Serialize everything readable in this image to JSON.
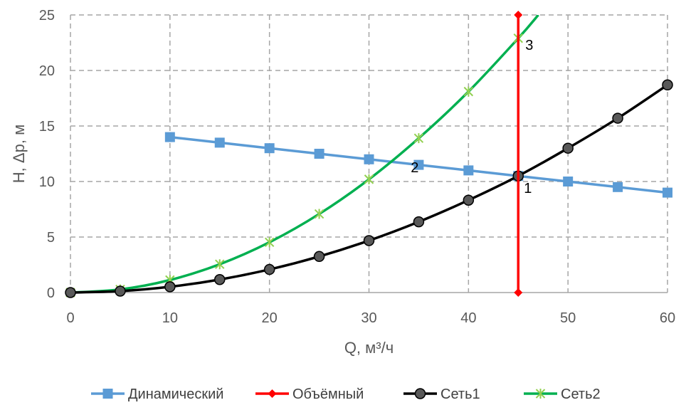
{
  "chart_data": {
    "type": "line",
    "title": "",
    "xlabel": "Q, м³/ч",
    "ylabel": "H, Δp, м",
    "xlim": [
      0,
      60
    ],
    "ylim": [
      0,
      25
    ],
    "x_ticks": [
      0,
      10,
      20,
      30,
      40,
      50,
      60
    ],
    "y_ticks": [
      0,
      5,
      10,
      15,
      20,
      25
    ],
    "grid": true,
    "grid_style": "dashed",
    "legend_position": "bottom",
    "series": [
      {
        "name": "Динамический",
        "color": "#5b9bd5",
        "marker": "square",
        "x": [
          10,
          15,
          20,
          25,
          30,
          35,
          40,
          45,
          50,
          55,
          60
        ],
        "y": [
          14,
          13.5,
          13,
          12.5,
          12,
          11.5,
          11,
          10.5,
          10,
          9.5,
          9
        ]
      },
      {
        "name": "Объёмный",
        "color": "#ff0000",
        "marker": "diamond",
        "x": [
          45,
          45
        ],
        "y": [
          0,
          25
        ]
      },
      {
        "name": "Сеть1",
        "color": "#000000",
        "marker": "circle",
        "x": [
          0,
          5,
          10,
          15,
          20,
          25,
          30,
          35,
          40,
          45,
          50,
          55,
          60
        ],
        "y": [
          0,
          0.13,
          0.52,
          1.17,
          2.08,
          3.25,
          4.68,
          6.37,
          8.32,
          10.5,
          13.0,
          15.7,
          18.7
        ]
      },
      {
        "name": "Сеть2",
        "color": "#00b050",
        "marker_color": "#92d050",
        "marker": "asterisk",
        "x": [
          0,
          5,
          10,
          15,
          20,
          25,
          30,
          35,
          40,
          45
        ],
        "y": [
          0,
          0.28,
          1.13,
          2.55,
          4.53,
          7.08,
          10.2,
          13.9,
          18.1,
          22.9
        ],
        "curve_extends_to_y": 25
      }
    ],
    "annotations": [
      {
        "text": "1",
        "x": 45,
        "y": 10.5
      },
      {
        "text": "2",
        "x": 32.2,
        "y": 11.6
      },
      {
        "text": "3",
        "x": 45,
        "y": 22.9
      }
    ]
  }
}
